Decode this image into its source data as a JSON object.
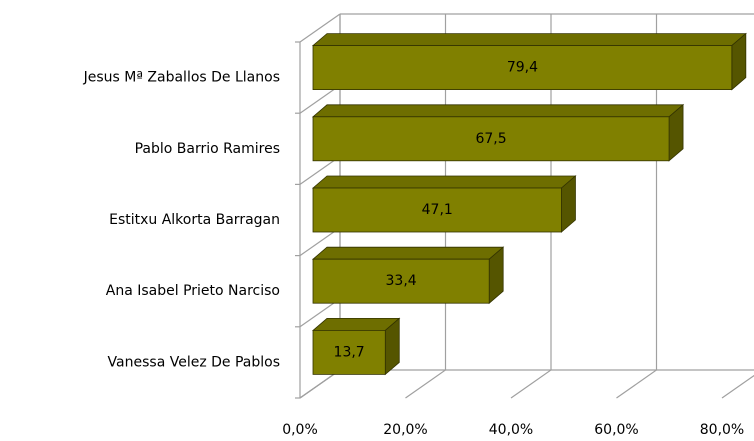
{
  "chart_data": {
    "type": "bar3d_horizontal",
    "categories": [
      "Jesus Mª Zaballos De Llanos",
      "Pablo Barrio Ramires",
      "Estitxu Alkorta Barragan",
      "Ana Isabel Prieto Narciso",
      "Vanessa Velez De Pablos"
    ],
    "values": [
      79.4,
      67.5,
      47.1,
      33.4,
      13.7
    ],
    "value_labels": [
      "79,4",
      "67,5",
      "47,1",
      "33,4",
      "13,7"
    ],
    "color": "#808000",
    "xlim": [
      0,
      80
    ],
    "xticks": [
      {
        "value": 0,
        "label": "0,0%"
      },
      {
        "value": 20,
        "label": "20,0%"
      },
      {
        "value": 40,
        "label": "40,0%"
      },
      {
        "value": 60,
        "label": "60,0%"
      },
      {
        "value": 80,
        "label": "80,0%"
      }
    ],
    "grid": true
  }
}
